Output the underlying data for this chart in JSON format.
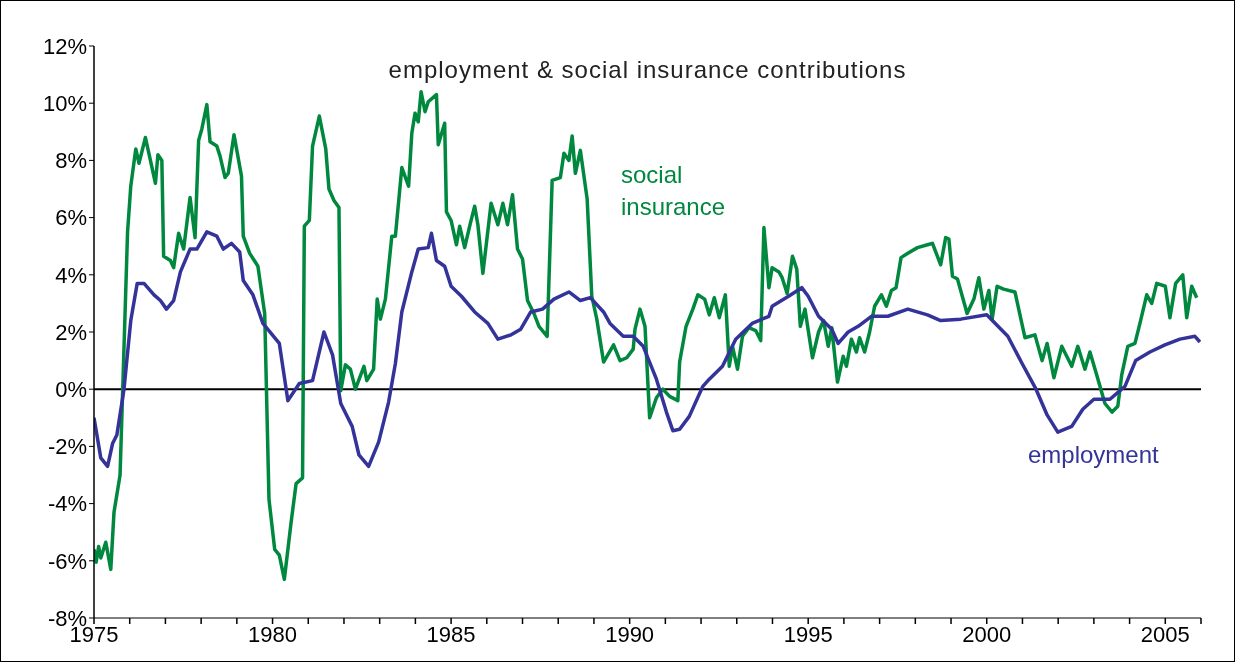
{
  "chart_data": {
    "type": "line",
    "title": "employment & social insurance contributions",
    "xlim": [
      1975,
      2006
    ],
    "xticks": [
      1975,
      {
        "value": 1976,
        "label": null
      },
      {
        "value": 1977,
        "label": null
      },
      {
        "value": 1978,
        "label": null
      },
      {
        "value": 1979,
        "label": null
      },
      1980,
      {
        "value": 1981,
        "label": null
      },
      {
        "value": 1982,
        "label": null
      },
      {
        "value": 1983,
        "label": null
      },
      {
        "value": 1984,
        "label": null
      },
      1985,
      {
        "value": 1986,
        "label": null
      },
      {
        "value": 1987,
        "label": null
      },
      {
        "value": 1988,
        "label": null
      },
      {
        "value": 1989,
        "label": null
      },
      1990,
      {
        "value": 1991,
        "label": null
      },
      {
        "value": 1992,
        "label": null
      },
      {
        "value": 1993,
        "label": null
      },
      {
        "value": 1994,
        "label": null
      },
      1995,
      {
        "value": 1996,
        "label": null
      },
      {
        "value": 1997,
        "label": null
      },
      {
        "value": 1998,
        "label": null
      },
      {
        "value": 1999,
        "label": null
      },
      2000,
      {
        "value": 2001,
        "label": null
      },
      {
        "value": 2002,
        "label": null
      },
      {
        "value": 2003,
        "label": null
      },
      {
        "value": 2004,
        "label": null
      },
      2005,
      {
        "value": 2006,
        "label": null
      }
    ],
    "ylim": [
      -8,
      12
    ],
    "yticks": [
      {
        "value": -8,
        "label": "-8%"
      },
      {
        "value": -6,
        "label": "-6%"
      },
      {
        "value": -4,
        "label": "-4%"
      },
      {
        "value": -2,
        "label": "-2%"
      },
      {
        "value": 0,
        "label": "0%"
      },
      {
        "value": 2,
        "label": "2%"
      },
      {
        "value": 4,
        "label": "4%"
      },
      {
        "value": 6,
        "label": "6%"
      },
      {
        "value": 8,
        "label": "8%"
      },
      {
        "value": 10,
        "label": "10%"
      },
      {
        "value": 12,
        "label": "12%"
      }
    ],
    "grid": false,
    "legend": false,
    "marker": "none",
    "line_style": "solid",
    "ref_lines": [
      {
        "axis": "y",
        "value": 0,
        "color": "#000000"
      }
    ],
    "series": [
      {
        "name": "social insurance",
        "color": "#00883f",
        "x": [
          1975.0,
          1975.06,
          1975.13,
          1975.19,
          1975.33,
          1975.47,
          1975.56,
          1975.73,
          1975.94,
          1976.03,
          1976.17,
          1976.26,
          1976.44,
          1976.58,
          1976.72,
          1976.79,
          1976.9,
          1976.95,
          1977.14,
          1977.23,
          1977.37,
          1977.51,
          1977.69,
          1977.83,
          1977.93,
          1978.02,
          1978.16,
          1978.25,
          1978.44,
          1978.53,
          1978.67,
          1978.76,
          1978.92,
          1979.13,
          1979.18,
          1979.36,
          1979.59,
          1979.78,
          1979.9,
          1980.06,
          1980.19,
          1980.33,
          1980.52,
          1980.66,
          1980.84,
          1980.89,
          1981.03,
          1981.12,
          1981.31,
          1981.49,
          1981.58,
          1981.72,
          1981.86,
          1981.91,
          1982.04,
          1982.18,
          1982.32,
          1982.56,
          1982.64,
          1982.83,
          1982.93,
          1983.02,
          1983.16,
          1983.34,
          1983.44,
          1983.62,
          1983.81,
          1983.9,
          1983.99,
          1984.08,
          1984.16,
          1984.27,
          1984.36,
          1984.59,
          1984.64,
          1984.82,
          1984.87,
          1985.0,
          1985.15,
          1985.24,
          1985.38,
          1985.52,
          1985.66,
          1985.75,
          1985.89,
          1986.12,
          1986.31,
          1986.45,
          1986.58,
          1986.72,
          1986.86,
          1987.0,
          1987.14,
          1987.32,
          1987.46,
          1987.69,
          1987.83,
          1988.06,
          1988.16,
          1988.3,
          1988.39,
          1988.48,
          1988.62,
          1988.81,
          1988.94,
          1989.08,
          1989.27,
          1989.55,
          1989.73,
          1989.92,
          1990.1,
          1990.15,
          1990.29,
          1990.43,
          1990.56,
          1990.75,
          1990.93,
          1991.12,
          1991.35,
          1991.4,
          1991.58,
          1991.77,
          1991.91,
          1992.1,
          1992.23,
          1992.37,
          1992.51,
          1992.68,
          1992.79,
          1992.88,
          1993.02,
          1993.16,
          1993.34,
          1993.53,
          1993.67,
          1993.76,
          1993.9,
          1993.99,
          1994.18,
          1994.27,
          1994.41,
          1994.56,
          1994.68,
          1994.78,
          1994.91,
          1995.12,
          1995.29,
          1995.43,
          1995.56,
          1995.66,
          1995.82,
          1995.98,
          1996.07,
          1996.21,
          1996.35,
          1996.44,
          1996.58,
          1996.72,
          1996.86,
          1997.05,
          1997.19,
          1997.33,
          1997.46,
          1997.6,
          1997.79,
          1998.06,
          1998.34,
          1998.48,
          1998.71,
          1998.85,
          1998.94,
          1999.04,
          1999.18,
          1999.45,
          1999.64,
          1999.78,
          1999.92,
          2000.06,
          2000.15,
          2000.29,
          2000.47,
          2000.79,
          2001.07,
          2001.35,
          2001.55,
          2001.69,
          2001.88,
          2002.1,
          2002.38,
          2002.55,
          2002.75,
          2002.89,
          2003.08,
          2003.31,
          2003.51,
          2003.67,
          2003.78,
          2003.95,
          2004.15,
          2004.29,
          2004.48,
          2004.62,
          2004.76,
          2005.0,
          2005.13,
          2005.29,
          2005.49,
          2005.6,
          2005.74,
          2005.88
        ],
        "values": [
          -5.6,
          -6.05,
          -5.5,
          -5.9,
          -5.35,
          -6.3,
          -4.3,
          -3.0,
          5.5,
          7.1,
          8.4,
          7.9,
          8.8,
          8.0,
          7.2,
          8.2,
          8.0,
          4.65,
          4.5,
          4.25,
          5.45,
          4.9,
          6.7,
          5.3,
          8.7,
          9.1,
          9.95,
          8.65,
          8.5,
          8.15,
          7.4,
          7.55,
          8.9,
          7.45,
          5.35,
          4.75,
          4.3,
          2.65,
          -3.85,
          -5.6,
          -5.8,
          -6.65,
          -4.65,
          -3.3,
          -3.1,
          5.7,
          5.9,
          8.5,
          9.55,
          8.4,
          7.0,
          6.6,
          6.35,
          -0.05,
          0.85,
          0.7,
          0.0,
          0.8,
          0.3,
          0.7,
          3.15,
          2.45,
          3.15,
          5.35,
          5.35,
          7.75,
          7.1,
          8.95,
          9.65,
          9.35,
          10.4,
          9.7,
          10.05,
          10.3,
          8.55,
          9.3,
          6.2,
          5.9,
          5.05,
          5.7,
          4.95,
          5.7,
          6.4,
          5.75,
          4.05,
          6.5,
          5.75,
          6.5,
          5.75,
          6.8,
          4.9,
          4.55,
          3.1,
          2.65,
          2.2,
          1.85,
          7.3,
          7.4,
          8.25,
          8.0,
          8.85,
          7.55,
          8.35,
          6.65,
          3.25,
          2.45,
          0.95,
          1.55,
          1.0,
          1.1,
          1.4,
          2.1,
          2.8,
          2.2,
          -1.0,
          -0.3,
          0.0,
          -0.25,
          -0.4,
          0.95,
          2.2,
          2.8,
          3.3,
          3.15,
          2.6,
          3.2,
          2.5,
          3.3,
          0.8,
          1.5,
          0.7,
          1.85,
          2.15,
          2.05,
          1.7,
          5.65,
          3.55,
          4.25,
          4.1,
          3.9,
          3.35,
          4.65,
          4.2,
          2.2,
          2.8,
          1.1,
          2.0,
          2.4,
          1.5,
          2.15,
          0.25,
          1.15,
          0.8,
          1.75,
          1.3,
          1.8,
          1.3,
          2.0,
          2.9,
          3.3,
          2.9,
          3.45,
          3.55,
          4.6,
          4.75,
          4.95,
          5.05,
          5.1,
          4.35,
          5.3,
          5.25,
          3.95,
          3.85,
          2.65,
          3.15,
          3.9,
          2.8,
          3.45,
          2.45,
          3.6,
          3.5,
          3.4,
          1.8,
          1.9,
          1.0,
          1.6,
          0.4,
          1.5,
          0.8,
          1.5,
          0.7,
          1.3,
          0.5,
          -0.5,
          -0.8,
          -0.6,
          0.5,
          1.5,
          1.6,
          2.3,
          3.3,
          3.0,
          3.7,
          3.6,
          2.5,
          3.7,
          4.0,
          2.5,
          3.6,
          3.2
        ]
      },
      {
        "name": "employment",
        "color": "#33339a",
        "x": [
          1975.0,
          1975.19,
          1975.38,
          1975.52,
          1975.64,
          1975.84,
          1976.03,
          1976.21,
          1976.4,
          1976.68,
          1976.86,
          1977.03,
          1977.23,
          1977.42,
          1977.69,
          1977.88,
          1978.16,
          1978.44,
          1978.62,
          1978.85,
          1979.08,
          1979.18,
          1979.45,
          1979.73,
          1980.19,
          1980.43,
          1980.75,
          1981.12,
          1981.44,
          1981.68,
          1981.91,
          1982.23,
          1982.42,
          1982.69,
          1982.97,
          1983.25,
          1983.44,
          1983.62,
          1983.9,
          1984.08,
          1984.36,
          1984.45,
          1984.59,
          1984.82,
          1985.0,
          1985.29,
          1985.66,
          1986.03,
          1986.31,
          1986.68,
          1986.95,
          1987.23,
          1987.56,
          1987.88,
          1988.3,
          1988.62,
          1988.9,
          1989.27,
          1989.45,
          1989.82,
          1990.1,
          1990.38,
          1990.75,
          1991.03,
          1991.21,
          1991.4,
          1991.67,
          1992.05,
          1992.23,
          1992.6,
          1992.97,
          1993.43,
          1993.9,
          1993.99,
          1994.45,
          1994.82,
          1995.0,
          1995.29,
          1995.66,
          1995.84,
          1996.12,
          1996.4,
          1996.77,
          1997.23,
          1997.79,
          1998.34,
          1998.71,
          1999.27,
          2000.0,
          2000.59,
          2000.99,
          2001.38,
          2001.69,
          2001.99,
          2002.38,
          2002.69,
          2003.0,
          2003.45,
          2003.87,
          2004.17,
          2004.57,
          2004.99,
          2005.41,
          2005.83,
          2005.97
        ],
        "values": [
          -1.0,
          -2.4,
          -2.7,
          -1.9,
          -1.6,
          0.0,
          2.4,
          3.7,
          3.7,
          3.3,
          3.1,
          2.8,
          3.1,
          4.1,
          4.9,
          4.9,
          5.5,
          5.35,
          4.9,
          5.1,
          4.8,
          3.8,
          3.3,
          2.3,
          1.6,
          -0.4,
          0.2,
          0.3,
          2.0,
          1.2,
          -0.5,
          -1.3,
          -2.3,
          -2.7,
          -1.85,
          -0.45,
          0.9,
          2.7,
          4.1,
          4.9,
          4.95,
          5.45,
          4.5,
          4.3,
          3.6,
          3.25,
          2.7,
          2.3,
          1.75,
          1.9,
          2.1,
          2.7,
          2.8,
          3.15,
          3.4,
          3.1,
          3.2,
          2.7,
          2.3,
          1.85,
          1.85,
          1.5,
          0.35,
          -0.8,
          -1.45,
          -1.4,
          -0.95,
          0.1,
          0.35,
          0.8,
          1.75,
          2.3,
          2.55,
          2.9,
          3.25,
          3.55,
          3.25,
          2.55,
          2.1,
          1.6,
          2.0,
          2.2,
          2.55,
          2.55,
          2.8,
          2.6,
          2.4,
          2.45,
          2.6,
          1.85,
          0.9,
          0.0,
          -0.9,
          -1.5,
          -1.3,
          -0.7,
          -0.35,
          -0.35,
          0.1,
          1.0,
          1.3,
          1.55,
          1.75,
          1.85,
          1.65
        ]
      }
    ]
  }
}
